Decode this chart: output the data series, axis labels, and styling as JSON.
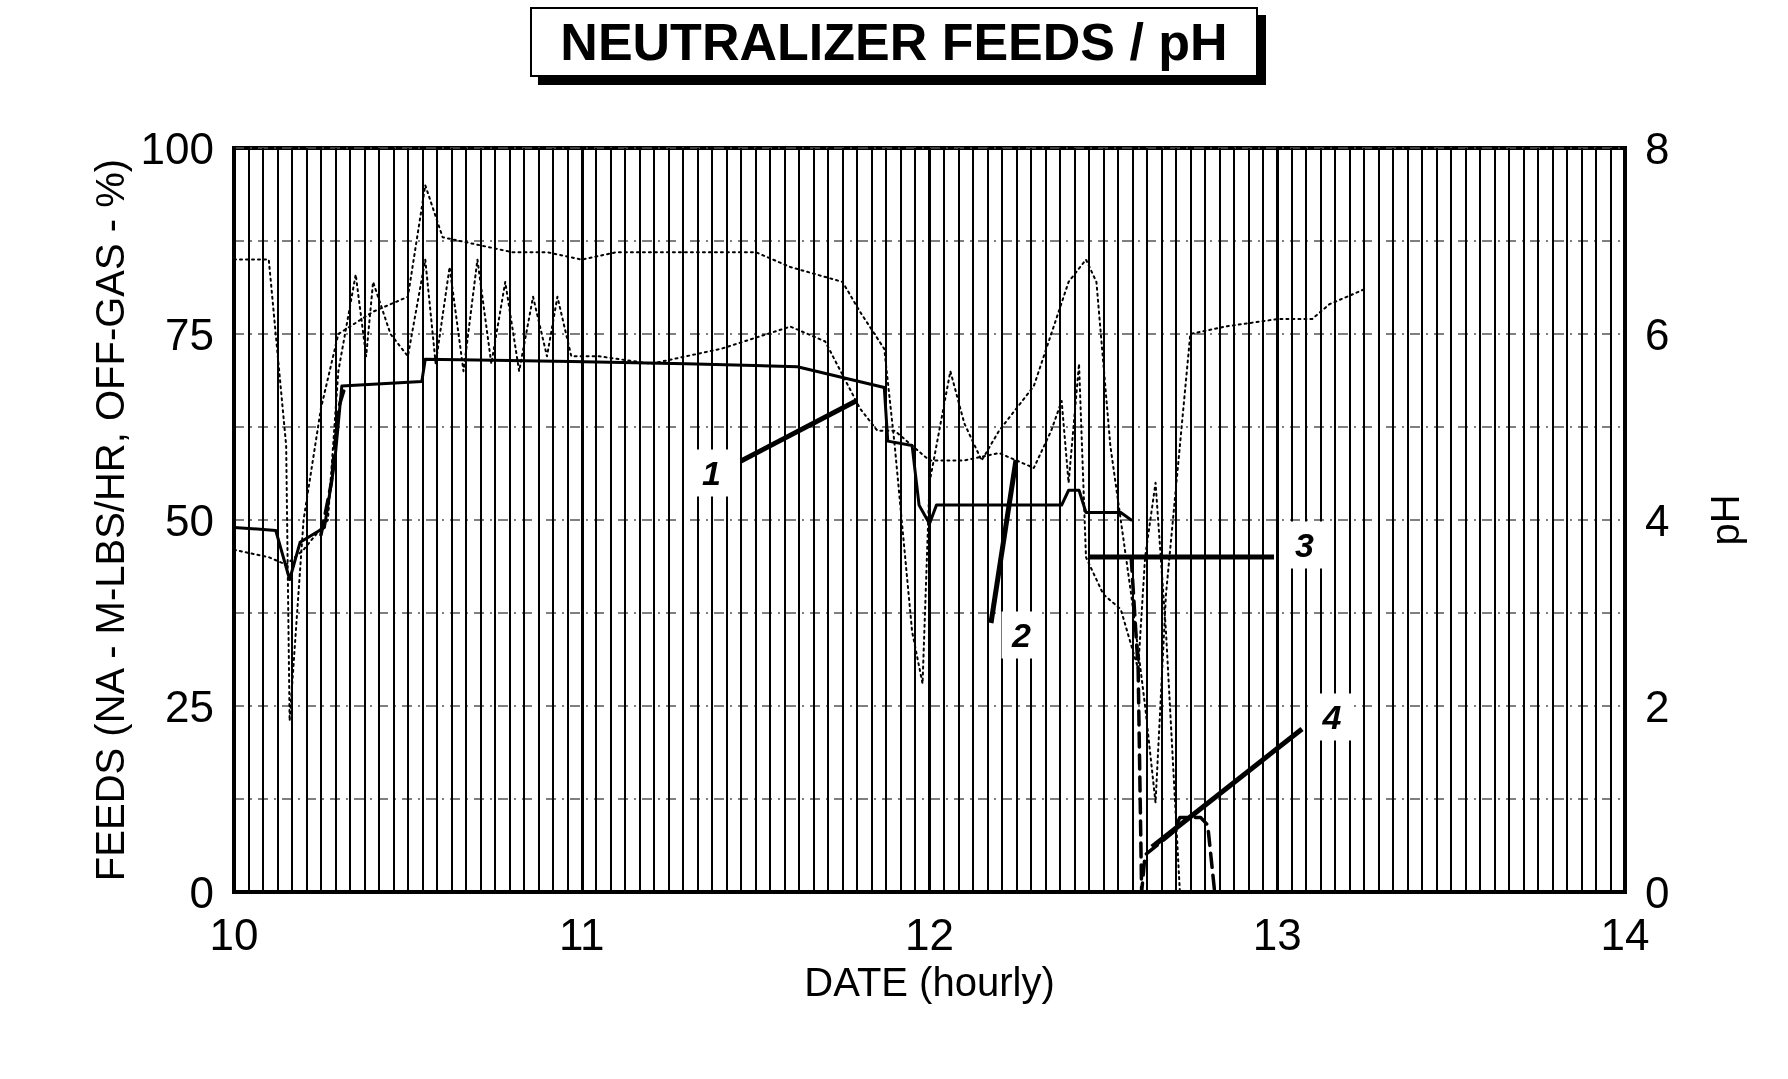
{
  "chart_data": {
    "type": "line",
    "title": "NEUTRALIZER FEEDS / pH",
    "xlabel": "DATE (hourly)",
    "ylabel": "FEEDS (NA - M-LBS/HR, OFF-GAS - %)",
    "y2label": "pH",
    "xlim": [
      10,
      14
    ],
    "xticks": [
      10,
      11,
      12,
      13,
      14
    ],
    "ylim": [
      0,
      100
    ],
    "yticks": [
      0,
      25,
      50,
      75,
      100
    ],
    "y2lim": [
      0,
      8
    ],
    "y2ticks": [
      0,
      2,
      4,
      6,
      8
    ],
    "grid": true,
    "marker": "none",
    "series": [
      {
        "color": "#000000",
        "line_style": "solid",
        "x": [
          10.0,
          10.12,
          10.16,
          10.19,
          10.26,
          10.29,
          10.31,
          10.54,
          10.55,
          10.97,
          11.3,
          11.62,
          11.87,
          11.88,
          11.95,
          11.97,
          12.0,
          12.02,
          12.38,
          12.4,
          12.43,
          12.45,
          12.55,
          12.58
        ],
        "values": [
          49,
          48.6,
          42,
          47,
          49,
          58,
          68,
          68.6,
          71.6,
          71.3,
          71,
          70.6,
          67.8,
          60.6,
          60,
          52,
          49.5,
          52,
          52,
          54,
          54,
          51,
          51,
          50
        ]
      },
      {
        "color": "#000000",
        "line_style": "dotted",
        "x": [
          10.0,
          10.1,
          10.15,
          10.2,
          10.27,
          10.3,
          10.35,
          10.38,
          10.4,
          10.45,
          10.5,
          10.55,
          10.58,
          10.62,
          10.66,
          10.7,
          10.74,
          10.78,
          10.82,
          10.86,
          10.9,
          10.93,
          10.97,
          11.05,
          11.2,
          11.4,
          11.6,
          11.7,
          11.8,
          11.85,
          11.9,
          11.95,
          12.0,
          12.1,
          12.2,
          12.3,
          12.35,
          12.38,
          12.4,
          12.43,
          12.45,
          12.5,
          12.55,
          12.6,
          12.62,
          12.65,
          12.68,
          12.72
        ],
        "values": [
          46,
          45,
          44,
          46,
          50,
          70,
          83,
          72,
          82,
          75,
          72,
          85,
          71,
          84,
          70,
          85,
          71,
          82,
          70,
          80,
          72,
          80,
          72,
          72,
          71,
          73,
          76,
          74,
          65,
          62,
          62,
          60,
          58,
          58,
          59,
          57,
          62,
          66,
          55,
          71,
          45,
          40,
          38,
          30,
          45,
          55,
          35,
          0
        ]
      },
      {
        "color": "#000000",
        "line_style": "dotted",
        "x": [
          10.0,
          10.1,
          10.15,
          10.16,
          10.2,
          10.25,
          10.3,
          10.4,
          10.5,
          10.55,
          10.6,
          10.7,
          10.8,
          10.9,
          11.0,
          11.1,
          11.2,
          11.5,
          11.6,
          11.75,
          11.8,
          11.87,
          11.9,
          11.95,
          11.98,
          12.0,
          12.06,
          12.1,
          12.15,
          12.2,
          12.3,
          12.35,
          12.4,
          12.45,
          12.48,
          12.52,
          12.58,
          12.62,
          12.65,
          12.68,
          12.72,
          12.75,
          12.85,
          13.0,
          13.1,
          13.15,
          13.2,
          13.25
        ],
        "values": [
          85,
          85,
          60,
          23,
          50,
          65,
          75,
          78,
          80,
          95,
          88,
          87,
          86,
          86,
          85,
          86,
          86,
          86,
          84,
          82,
          78,
          73,
          60,
          35,
          28,
          55,
          70,
          63,
          58,
          62,
          68,
          75,
          82,
          85,
          82,
          60,
          40,
          25,
          12,
          40,
          60,
          75,
          76,
          77,
          77,
          79,
          80,
          81
        ]
      },
      {
        "color": "#000000",
        "line_style": "dashed",
        "x": [
          10.25,
          10.28,
          10.3,
          10.32,
          12.55,
          12.58,
          12.6,
          12.61,
          12.62,
          12.7,
          12.72,
          12.78,
          12.8,
          12.82
        ],
        "values": [
          48,
          55,
          65,
          68,
          null,
          45,
          30,
          0,
          5,
          8,
          10,
          10,
          9,
          0
        ]
      }
    ],
    "annotations": [
      {
        "text": "1",
        "x": 11.79,
        "y": 66
      },
      {
        "text": "2",
        "x": 12.25,
        "y": 58
      },
      {
        "text": "3",
        "x": 12.46,
        "y": 45
      },
      {
        "text": "4",
        "x": 12.64,
        "y": 6
      }
    ]
  }
}
